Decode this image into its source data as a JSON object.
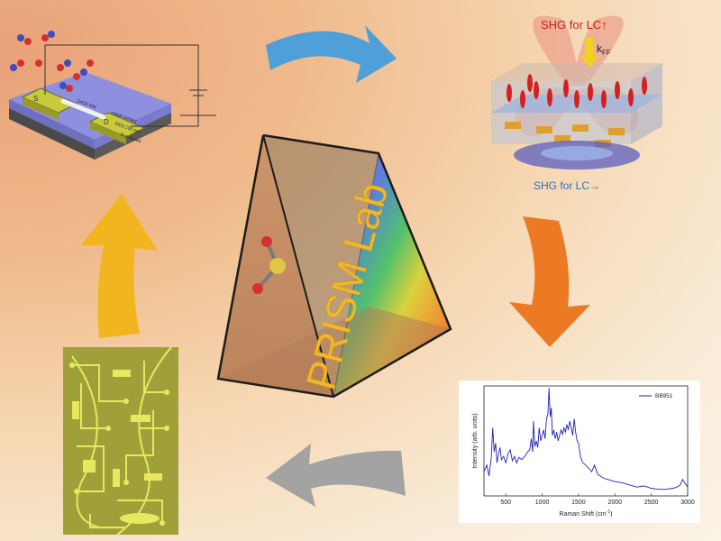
{
  "center": {
    "title": "PRISM Lab"
  },
  "shg": {
    "top_label": "SHG for LC",
    "top_arrow": "↑",
    "bottom_label": "SHG for LC",
    "bottom_arrow": "→",
    "k_label": "k",
    "k_sub": "FF"
  },
  "device": {
    "source_label": "S",
    "drain_label": "D",
    "wire_label": "SnO2 NW",
    "contact_label": "metal contact",
    "oxide_label": "SiO2 100 nm",
    "substrate_label": "Si p-doped"
  },
  "chart_data": {
    "type": "line",
    "xlabel": "Raman Shift (cm",
    "xlabel_sup": "-1",
    "xlabel_end": ")",
    "ylabel": "Intensity (arb. units)",
    "xlim": [
      200,
      3000
    ],
    "ylim": [
      0,
      1
    ],
    "xticks": [
      500,
      1000,
      1500,
      2000,
      2500,
      3000
    ],
    "series": [
      {
        "name": "BB951",
        "color": "#2323b4",
        "x": [
          200,
          240,
          270,
          300,
          320,
          340,
          360,
          380,
          400,
          420,
          440,
          470,
          500,
          530,
          560,
          590,
          620,
          650,
          680,
          720,
          760,
          800,
          830,
          850,
          870,
          880,
          900,
          920,
          940,
          960,
          980,
          1000,
          1020,
          1040,
          1060,
          1080,
          1095,
          1110,
          1125,
          1140,
          1160,
          1180,
          1200,
          1220,
          1240,
          1260,
          1280,
          1300,
          1320,
          1340,
          1360,
          1380,
          1400,
          1420,
          1440,
          1460,
          1480,
          1500,
          1530,
          1560,
          1600,
          1640,
          1680,
          1720,
          1760,
          1800,
          1850,
          1900,
          1950,
          2000,
          2100,
          2200,
          2300,
          2400,
          2500,
          2600,
          2700,
          2800,
          2850,
          2900,
          2930,
          2960,
          3000
        ],
        "y": [
          0.22,
          0.28,
          0.18,
          0.35,
          0.62,
          0.4,
          0.48,
          0.3,
          0.38,
          0.44,
          0.33,
          0.36,
          0.3,
          0.38,
          0.42,
          0.32,
          0.36,
          0.3,
          0.35,
          0.33,
          0.36,
          0.4,
          0.42,
          0.52,
          0.4,
          0.68,
          0.45,
          0.5,
          0.44,
          0.62,
          0.5,
          0.55,
          0.6,
          0.52,
          0.7,
          0.75,
          0.98,
          0.72,
          0.8,
          0.55,
          0.6,
          0.52,
          0.58,
          0.5,
          0.55,
          0.6,
          0.56,
          0.62,
          0.58,
          0.65,
          0.6,
          0.68,
          0.62,
          0.55,
          0.7,
          0.58,
          0.5,
          0.48,
          0.35,
          0.3,
          0.28,
          0.25,
          0.22,
          0.28,
          0.2,
          0.18,
          0.16,
          0.15,
          0.14,
          0.13,
          0.12,
          0.1,
          0.08,
          0.09,
          0.07,
          0.06,
          0.06,
          0.07,
          0.08,
          0.1,
          0.15,
          0.12,
          0.08
        ]
      }
    ]
  }
}
